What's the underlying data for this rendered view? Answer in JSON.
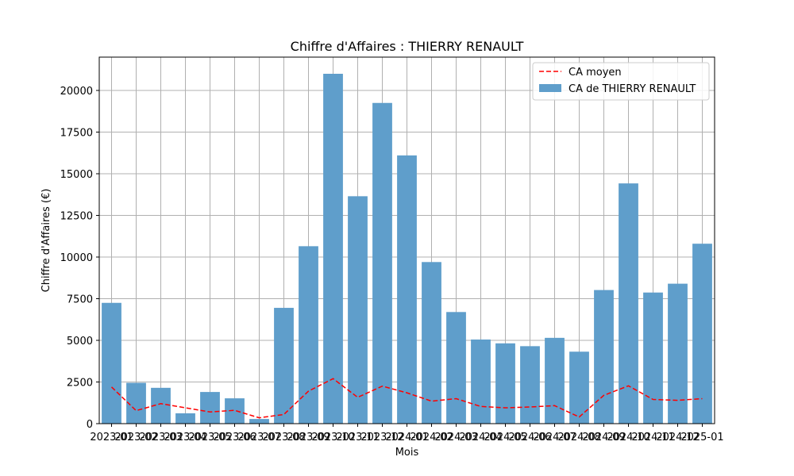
{
  "chart_data": {
    "type": "bar",
    "title": "Chiffre d'Affaires : THIERRY RENAULT",
    "xlabel": "Mois",
    "ylabel": "Chiffre d'Affaires (€)",
    "categories": [
      "2023-01",
      "2023-02",
      "2023-03",
      "2023-04",
      "2023-05",
      "2023-06",
      "2023-07",
      "2023-08",
      "2023-09",
      "2023-10",
      "2023-11",
      "2023-12",
      "2024-01",
      "2024-02",
      "2024-03",
      "2024-04",
      "2024-05",
      "2024-06",
      "2024-07",
      "2024-08",
      "2024-09",
      "2024-10",
      "2024-11",
      "2024-12",
      "2025-01"
    ],
    "ylim": [
      0,
      22000
    ],
    "yticks": [
      0,
      2500,
      5000,
      7500,
      10000,
      12500,
      15000,
      17500,
      20000
    ],
    "grid": true,
    "legend_position": "top-right",
    "series": [
      {
        "name": "CA de THIERRY RENAULT",
        "kind": "bar",
        "color": "#5f9ecb",
        "values": [
          7250,
          2450,
          2150,
          620,
          1900,
          1520,
          280,
          6950,
          10650,
          21000,
          13650,
          19250,
          16100,
          9700,
          6700,
          5050,
          4820,
          4650,
          5150,
          4320,
          8020,
          14420,
          7870,
          8400,
          10800
        ]
      },
      {
        "name": "CA moyen",
        "kind": "line",
        "style": "dashed",
        "color": "#ff0000",
        "values": [
          2200,
          780,
          1200,
          950,
          700,
          800,
          350,
          550,
          1950,
          2700,
          1580,
          2250,
          1850,
          1350,
          1500,
          1030,
          950,
          1000,
          1080,
          400,
          1700,
          2270,
          1450,
          1400,
          1500
        ]
      }
    ]
  }
}
